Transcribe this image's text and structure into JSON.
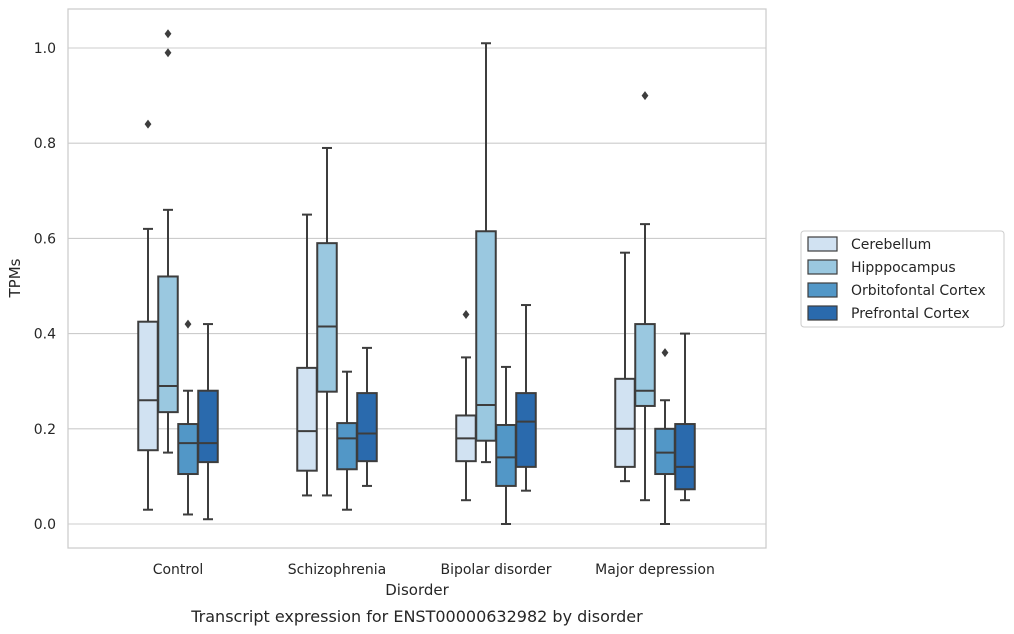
{
  "chart_data": {
    "type": "box",
    "title": "",
    "caption": "Transcript expression for ENST00000632982 by disorder",
    "xlabel": "Disorder",
    "ylabel": "TPMs",
    "ylim": [
      -0.05,
      1.08
    ],
    "yticks": [
      "0.0",
      "0.2",
      "0.4",
      "0.6",
      "0.8",
      "1.0"
    ],
    "grid": true,
    "legend_position": "right",
    "categories": [
      "Control",
      "Schizophrenia",
      "Bipolar disorder",
      "Major depression"
    ],
    "series": [
      {
        "name": "Cerebellum",
        "color": "#d1e2f2",
        "boxes": [
          {
            "whisker_low": 0.03,
            "q1": 0.155,
            "median": 0.26,
            "q3": 0.425,
            "whisker_high": 0.62,
            "outliers": [
              0.84
            ]
          },
          {
            "whisker_low": 0.06,
            "q1": 0.112,
            "median": 0.195,
            "q3": 0.328,
            "whisker_high": 0.65,
            "outliers": []
          },
          {
            "whisker_low": 0.05,
            "q1": 0.132,
            "median": 0.18,
            "q3": 0.228,
            "whisker_high": 0.35,
            "outliers": [
              0.44
            ]
          },
          {
            "whisker_low": 0.09,
            "q1": 0.12,
            "median": 0.2,
            "q3": 0.305,
            "whisker_high": 0.57,
            "outliers": []
          }
        ]
      },
      {
        "name": "Hipppocampus",
        "color": "#9ac8e0",
        "boxes": [
          {
            "whisker_low": 0.15,
            "q1": 0.235,
            "median": 0.29,
            "q3": 0.52,
            "whisker_high": 0.66,
            "outliers": [
              0.99,
              1.03
            ]
          },
          {
            "whisker_low": 0.06,
            "q1": 0.278,
            "median": 0.415,
            "q3": 0.59,
            "whisker_high": 0.79,
            "outliers": []
          },
          {
            "whisker_low": 0.13,
            "q1": 0.175,
            "median": 0.25,
            "q3": 0.615,
            "whisker_high": 1.01,
            "outliers": []
          },
          {
            "whisker_low": 0.05,
            "q1": 0.248,
            "median": 0.28,
            "q3": 0.42,
            "whisker_high": 0.63,
            "outliers": [
              0.9
            ]
          }
        ]
      },
      {
        "name": "Orbitofontal Cortex",
        "color": "#5297c7",
        "boxes": [
          {
            "whisker_low": 0.02,
            "q1": 0.105,
            "median": 0.17,
            "q3": 0.21,
            "whisker_high": 0.28,
            "outliers": [
              0.42
            ]
          },
          {
            "whisker_low": 0.03,
            "q1": 0.115,
            "median": 0.18,
            "q3": 0.212,
            "whisker_high": 0.32,
            "outliers": []
          },
          {
            "whisker_low": 0.0,
            "q1": 0.08,
            "median": 0.14,
            "q3": 0.208,
            "whisker_high": 0.33,
            "outliers": []
          },
          {
            "whisker_low": 0.0,
            "q1": 0.105,
            "median": 0.15,
            "q3": 0.2,
            "whisker_high": 0.26,
            "outliers": [
              0.36
            ]
          }
        ]
      },
      {
        "name": "Prefrontal Cortex",
        "color": "#2a6aad",
        "boxes": [
          {
            "whisker_low": 0.01,
            "q1": 0.13,
            "median": 0.17,
            "q3": 0.28,
            "whisker_high": 0.42,
            "outliers": []
          },
          {
            "whisker_low": 0.08,
            "q1": 0.132,
            "median": 0.19,
            "q3": 0.275,
            "whisker_high": 0.37,
            "outliers": []
          },
          {
            "whisker_low": 0.07,
            "q1": 0.12,
            "median": 0.215,
            "q3": 0.275,
            "whisker_high": 0.46,
            "outliers": []
          },
          {
            "whisker_low": 0.05,
            "q1": 0.073,
            "median": 0.12,
            "q3": 0.21,
            "whisker_high": 0.4,
            "outliers": []
          }
        ]
      }
    ]
  }
}
